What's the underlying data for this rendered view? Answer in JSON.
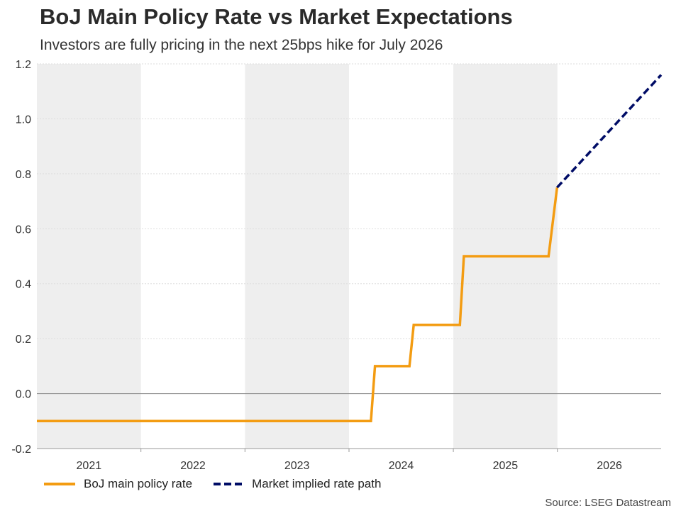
{
  "title": "BoJ Main Policy Rate vs Market Expectations",
  "subtitle": "Investors are fully pricing in the next 25bps hike for July 2026",
  "source": "Source: LSEG Datastream",
  "chart_data": {
    "type": "line",
    "title": "BoJ Main Policy Rate vs Market Expectations",
    "subtitle": "Investors are fully pricing in the next 25bps hike for July 2026",
    "xlabel": "",
    "ylabel": "",
    "xlim": [
      "2021-01-01",
      "2026-12-31"
    ],
    "ylim": [
      -0.2,
      1.2
    ],
    "y_ticks": [
      "-0.2",
      "0.0",
      "0.2",
      "0.4",
      "0.6",
      "0.8",
      "1.0",
      "1.2"
    ],
    "x_tick_labels": [
      "2021",
      "2022",
      "2023",
      "2024",
      "2025",
      "2026"
    ],
    "grid": true,
    "shaded_years": [
      "2021",
      "2023",
      "2025"
    ],
    "legend_position": "bottom-left",
    "series": [
      {
        "name": "BoJ main policy rate",
        "color": "#F39C12",
        "style": "solid",
        "points": [
          [
            "2021-01-01",
            -0.1
          ],
          [
            "2024-03-18",
            -0.1
          ],
          [
            "2024-04-01",
            0.1
          ],
          [
            "2024-07-31",
            0.1
          ],
          [
            "2024-08-15",
            0.25
          ],
          [
            "2025-01-24",
            0.25
          ],
          [
            "2025-02-07",
            0.5
          ],
          [
            "2025-12-01",
            0.5
          ],
          [
            "2025-12-31",
            0.75
          ]
        ]
      },
      {
        "name": "Market implied rate path",
        "color": "#000C66",
        "style": "dashed",
        "points": [
          [
            "2025-12-31",
            0.75
          ],
          [
            "2026-12-31",
            1.16
          ]
        ]
      }
    ]
  }
}
